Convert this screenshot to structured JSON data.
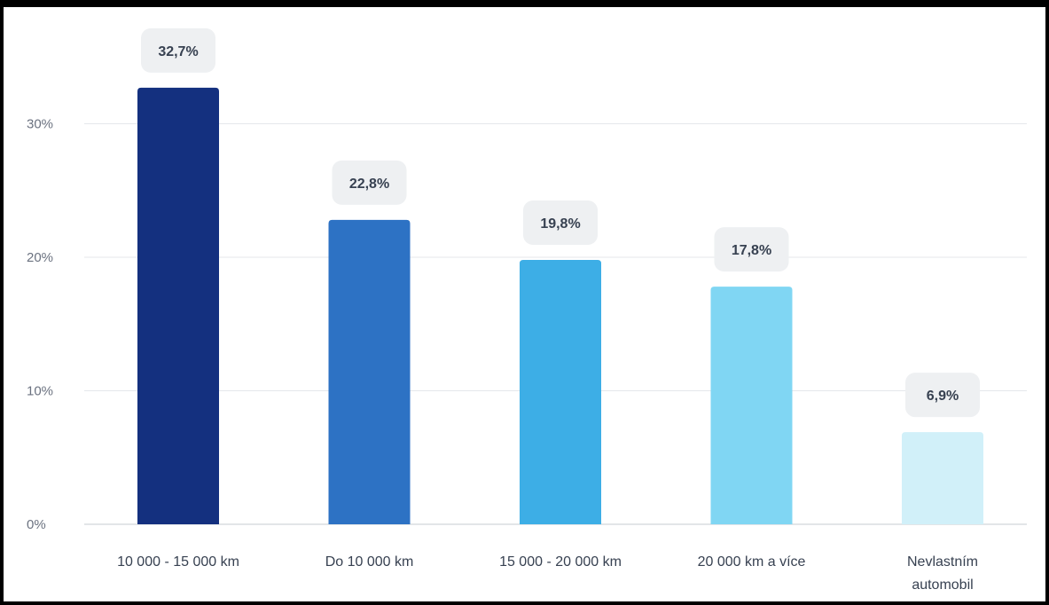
{
  "chart_data": {
    "type": "bar",
    "categories": [
      [
        "10 000 - 15 000 km"
      ],
      [
        "Do 10 000 km"
      ],
      [
        "15 000 - 20 000 km"
      ],
      [
        "20 000 km a více"
      ],
      [
        "Nevlastním",
        "automobil"
      ]
    ],
    "values": [
      32.7,
      22.8,
      19.8,
      17.8,
      6.9
    ],
    "value_labels": [
      "32,7%",
      "22,8%",
      "19,8%",
      "17,8%",
      "6,9%"
    ],
    "colors": [
      "#14307f",
      "#2d72c4",
      "#3daee6",
      "#80d6f3",
      "#d1f0f9"
    ],
    "y_ticks": [
      0,
      10,
      20,
      30
    ],
    "y_tick_labels": [
      "0%",
      "10%",
      "20%",
      "30%"
    ],
    "ylim": [
      0,
      35
    ],
    "grid": true,
    "legend": "none"
  }
}
